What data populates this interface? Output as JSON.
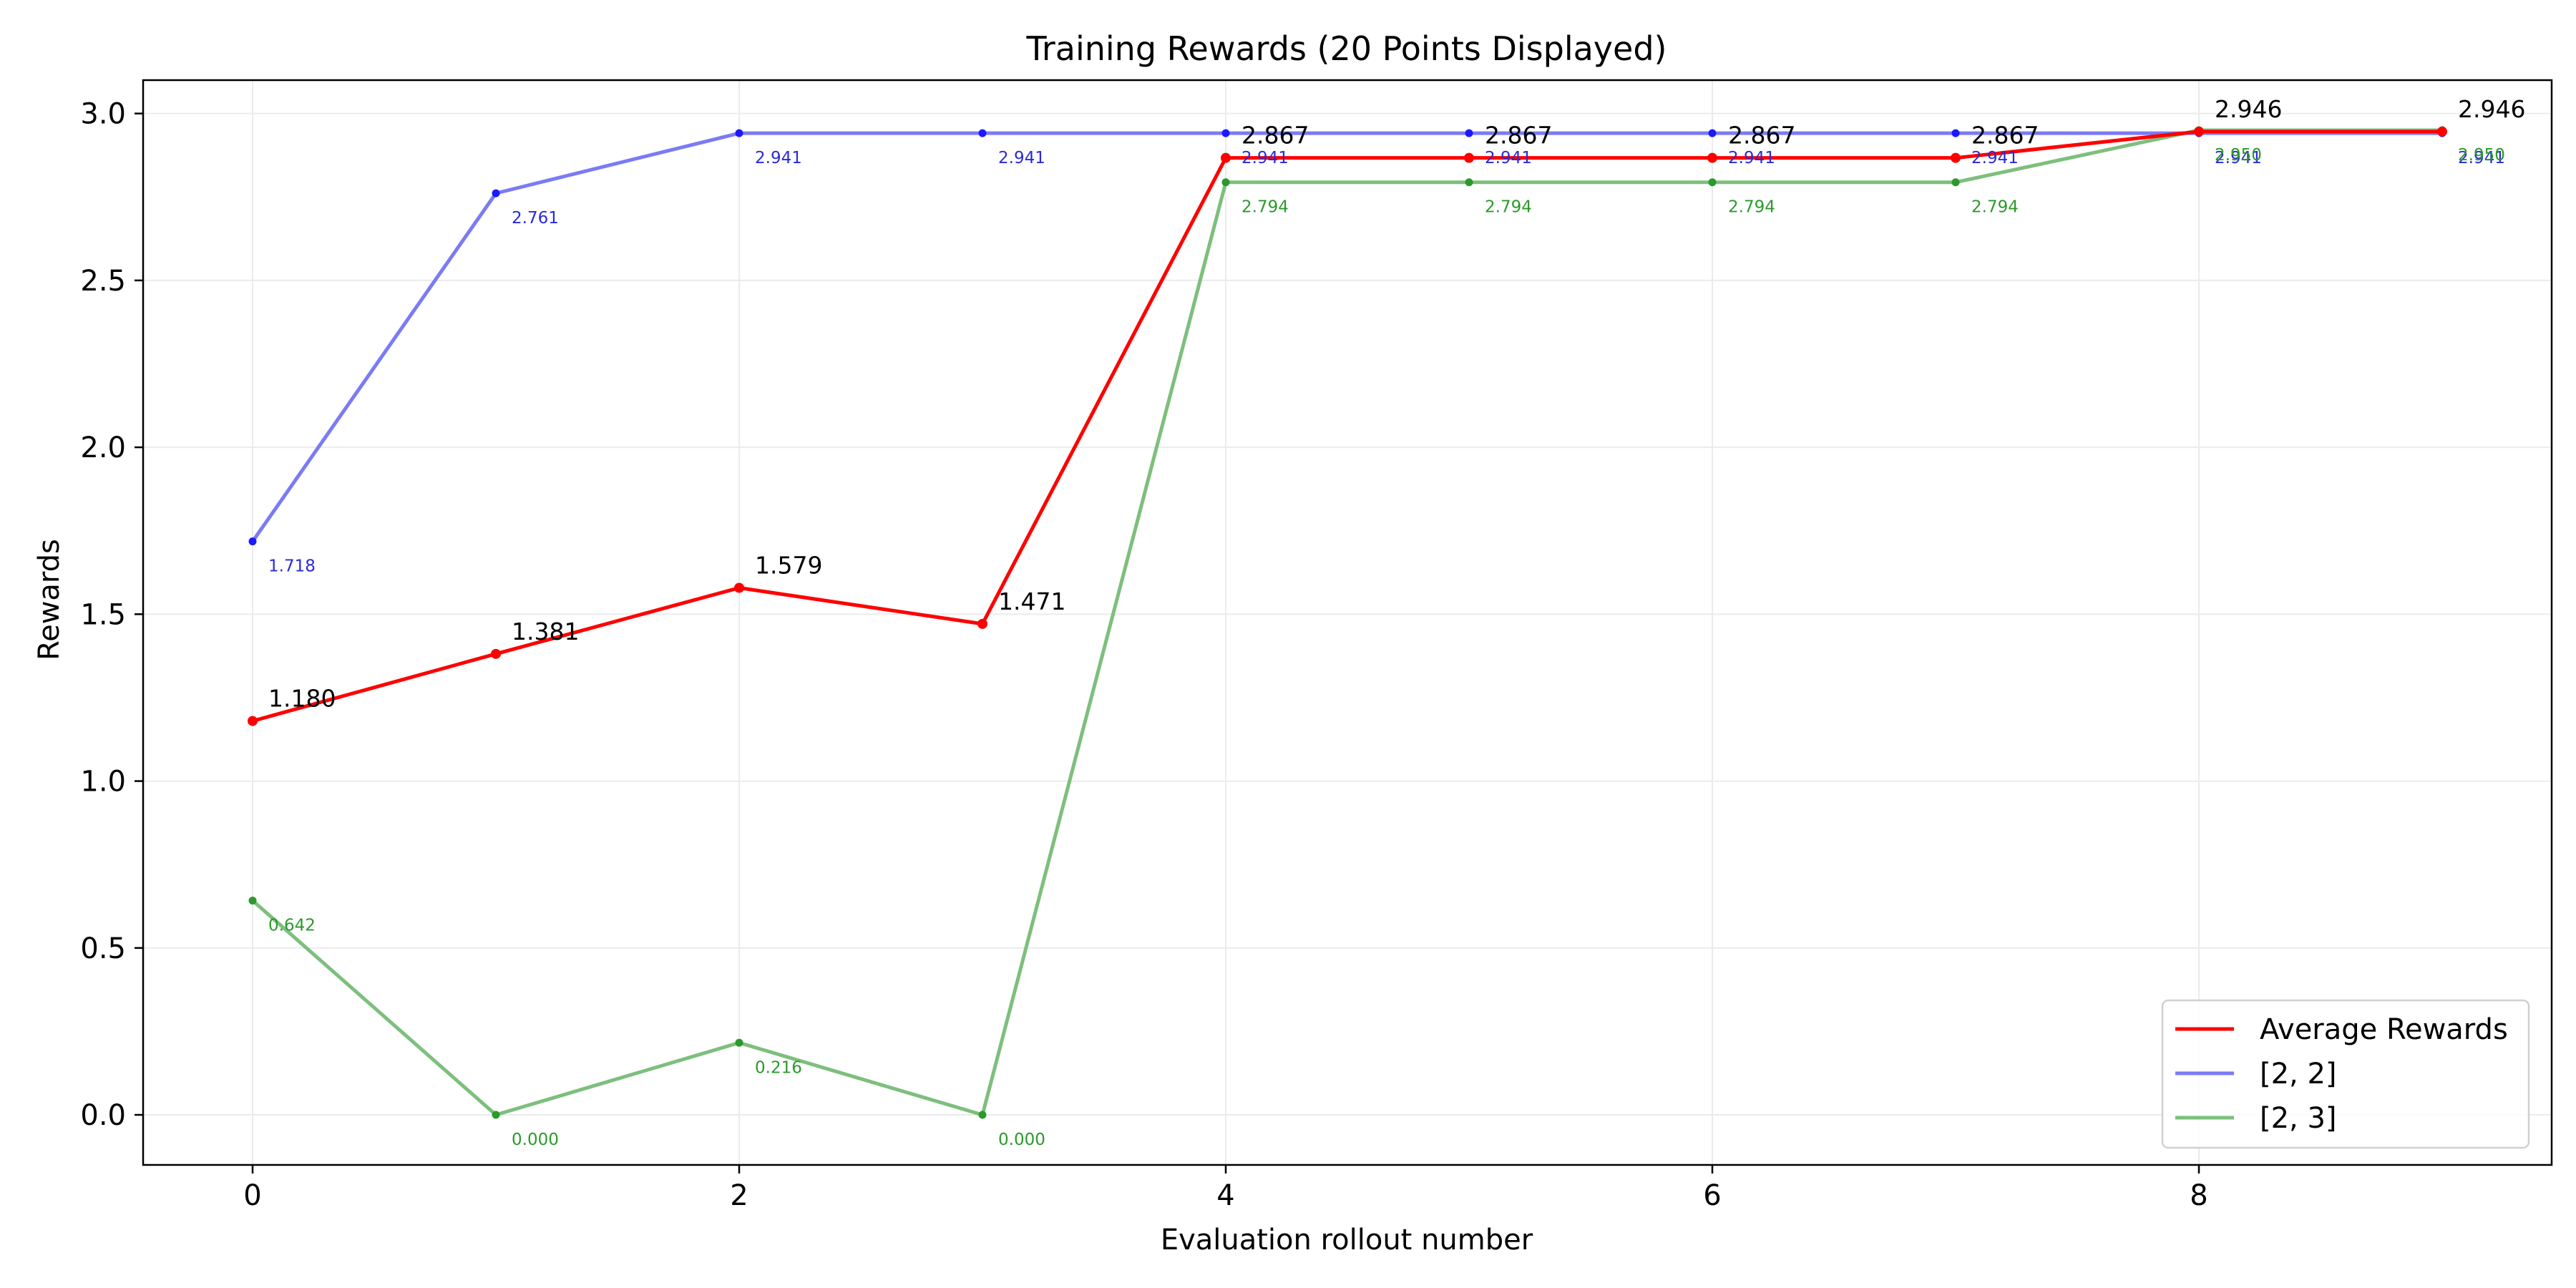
{
  "chart_data": {
    "type": "line",
    "title": "Training Rewards (20 Points Displayed)",
    "xlabel": "Evaluation rollout number",
    "ylabel": "Rewards",
    "xlim": [
      -0.45,
      9.45
    ],
    "ylim": [
      -0.15,
      3.1
    ],
    "xticks": [
      0,
      2,
      4,
      6,
      8
    ],
    "yticks": [
      0.0,
      0.5,
      1.0,
      1.5,
      2.0,
      2.5,
      3.0
    ],
    "xtick_labels": [
      "0",
      "2",
      "4",
      "6",
      "8"
    ],
    "ytick_labels": [
      "0.0",
      "0.5",
      "1.0",
      "1.5",
      "2.0",
      "2.5",
      "3.0"
    ],
    "grid": true,
    "legend_position": "bottom-right",
    "x": [
      0,
      1,
      2,
      3,
      4,
      5,
      6,
      7,
      8,
      9
    ],
    "series": [
      {
        "name": "Average Rewards",
        "color": "#ff0000",
        "values": [
          1.18,
          1.381,
          1.579,
          1.471,
          2.867,
          2.867,
          2.867,
          2.867,
          2.946,
          2.946
        ],
        "labels": [
          "1.180",
          "1.381",
          "1.579",
          "1.471",
          "2.867",
          "2.867",
          "2.867",
          "2.867",
          "2.946",
          "2.946"
        ]
      },
      {
        "name": "[2, 2]",
        "color": "#7b7bf5",
        "point_color": "#1a1aff",
        "values": [
          1.718,
          2.761,
          2.941,
          2.941,
          2.941,
          2.941,
          2.941,
          2.941,
          2.941,
          2.941
        ],
        "labels": [
          "1.718",
          "2.761",
          "2.941",
          "2.941",
          "2.941",
          "2.941",
          "2.941",
          "2.941",
          "2.941",
          "2.941"
        ]
      },
      {
        "name": "[2, 3]",
        "color": "#7dbf7d",
        "point_color": "#2a9a2a",
        "values": [
          0.642,
          0.0,
          0.216,
          0.0,
          2.794,
          2.794,
          2.794,
          2.794,
          2.95,
          2.95
        ],
        "labels": [
          "0.642",
          "0.000",
          "0.216",
          "0.000",
          "2.794",
          "2.794",
          "2.794",
          "2.794",
          "2.950",
          "2.950"
        ]
      }
    ]
  }
}
